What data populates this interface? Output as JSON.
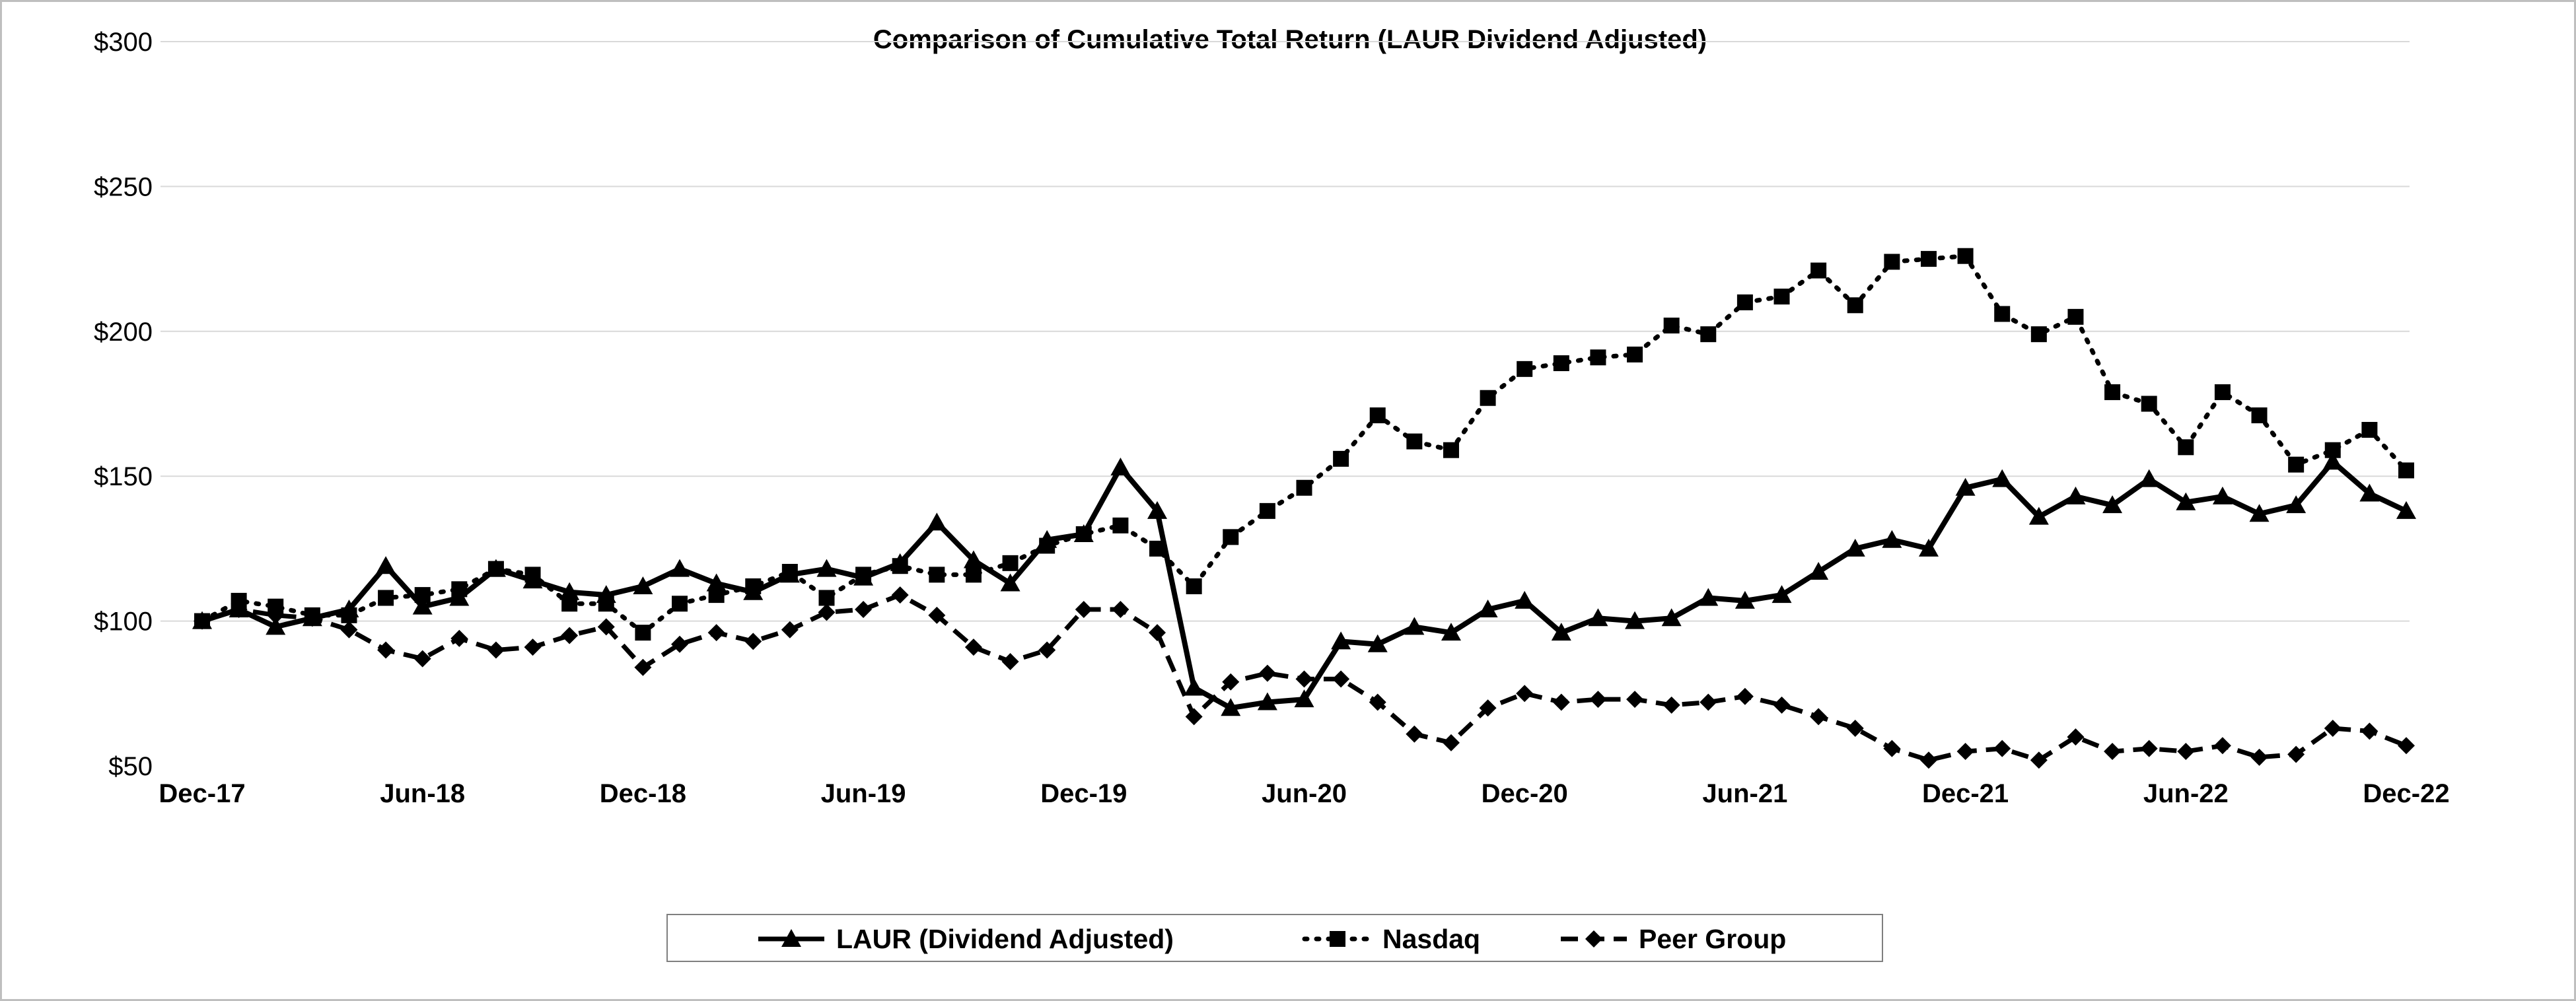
{
  "chart_data": {
    "type": "line",
    "title": "Comparison of Cumulative Total Return (LAUR Dividend Adjusted)",
    "xlabel": "",
    "ylabel": "",
    "ylim": [
      50,
      300
    ],
    "y_ticks": [
      50,
      100,
      150,
      200,
      250,
      300
    ],
    "y_tick_labels": [
      "$50",
      "$100",
      "$150",
      "$200",
      "$250",
      "$300"
    ],
    "x_tick_labels": [
      "Dec-17",
      "Jun-18",
      "Dec-18",
      "Jun-19",
      "Dec-19",
      "Jun-20",
      "Dec-20",
      "Jun-21",
      "Dec-21",
      "Jun-22",
      "Dec-22"
    ],
    "x_tick_every": 6,
    "grid": true,
    "legend_position": "bottom",
    "series": [
      {
        "name": "LAUR (Dividend Adjusted)",
        "line_style": "solid",
        "marker": "triangle",
        "values": [
          100,
          104,
          98,
          101,
          104,
          119,
          105,
          108,
          118,
          114,
          110,
          109,
          112,
          118,
          113,
          110,
          116,
          118,
          115,
          120,
          134,
          121,
          113,
          128,
          130,
          153,
          138,
          77,
          70,
          72,
          73,
          93,
          92,
          98,
          96,
          104,
          107,
          96,
          101,
          100,
          101,
          108,
          107,
          109,
          117,
          125,
          128,
          125,
          146,
          149,
          136,
          143,
          140,
          149,
          141,
          143,
          137,
          140,
          155,
          144,
          138
        ]
      },
      {
        "name": "Nasdaq",
        "line_style": "dotted",
        "marker": "square",
        "values": [
          100,
          107,
          105,
          102,
          102,
          108,
          109,
          111,
          118,
          116,
          106,
          106,
          96,
          106,
          109,
          112,
          117,
          108,
          116,
          119,
          116,
          116,
          120,
          126,
          130,
          133,
          125,
          112,
          129,
          138,
          146,
          156,
          171,
          162,
          159,
          177,
          187,
          189,
          191,
          192,
          202,
          199,
          210,
          212,
          221,
          209,
          224,
          225,
          226,
          206,
          199,
          205,
          179,
          175,
          160,
          179,
          171,
          154,
          159,
          166,
          152
        ]
      },
      {
        "name": "Peer Group",
        "line_style": "dashed",
        "marker": "diamond",
        "values": [
          100,
          104,
          102,
          101,
          97,
          90,
          87,
          94,
          90,
          91,
          95,
          98,
          84,
          92,
          96,
          93,
          97,
          103,
          104,
          109,
          102,
          91,
          86,
          90,
          104,
          104,
          96,
          67,
          79,
          82,
          80,
          80,
          72,
          61,
          58,
          70,
          75,
          72,
          73,
          73,
          71,
          72,
          74,
          71,
          67,
          63,
          56,
          52,
          55,
          56,
          52,
          60,
          55,
          56,
          55,
          57,
          53,
          54,
          63,
          62,
          57
        ]
      }
    ]
  }
}
